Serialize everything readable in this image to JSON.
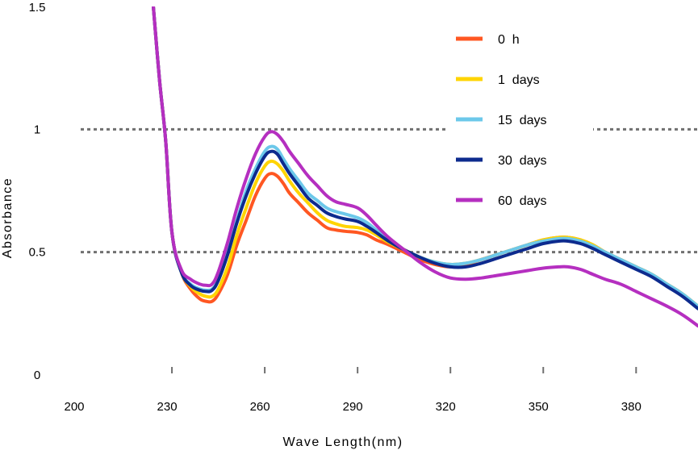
{
  "chart_data": {
    "type": "line",
    "title": "",
    "xlabel": "Wave Length(nm)",
    "ylabel": "Absorbance",
    "xlim": [
      200,
      400
    ],
    "ylim": [
      0,
      1.5
    ],
    "x_ticks": [
      "200",
      "230",
      "260",
      "290",
      "320",
      "350",
      "380"
    ],
    "y_ticks": [
      "0",
      "0.5",
      "1",
      "1.5"
    ],
    "reference_lines": [
      0.5,
      1
    ],
    "legend_position": "top-right",
    "series": [
      {
        "name": "0  h",
        "color": "#ff5722",
        "x": [
          224,
          226,
          228,
          230,
          233,
          236,
          239,
          241,
          243,
          245,
          248,
          251,
          254,
          257,
          260,
          262,
          264,
          266,
          268,
          271,
          274,
          277,
          280,
          283,
          286,
          290,
          293,
          296,
          300,
          305,
          310,
          315,
          320,
          325,
          330,
          335,
          340,
          345,
          350,
          355,
          358,
          362,
          366,
          370,
          375,
          380,
          385,
          390,
          395,
          400
        ],
        "y": [
          1.5,
          1.2,
          0.95,
          0.58,
          0.42,
          0.35,
          0.31,
          0.3,
          0.3,
          0.33,
          0.41,
          0.53,
          0.63,
          0.73,
          0.8,
          0.82,
          0.81,
          0.78,
          0.74,
          0.7,
          0.66,
          0.63,
          0.6,
          0.59,
          0.585,
          0.58,
          0.57,
          0.55,
          0.53,
          0.5,
          0.47,
          0.45,
          0.44,
          0.45,
          0.47,
          0.49,
          0.51,
          0.53,
          0.55,
          0.56,
          0.56,
          0.55,
          0.53,
          0.5,
          0.47,
          0.44,
          0.41,
          0.37,
          0.33,
          0.28
        ]
      },
      {
        "name": "1  days",
        "color": "#ffd400",
        "x": [
          224,
          226,
          228,
          230,
          233,
          236,
          239,
          241,
          243,
          245,
          248,
          251,
          254,
          257,
          260,
          262,
          264,
          266,
          268,
          271,
          274,
          277,
          280,
          283,
          286,
          290,
          293,
          296,
          300,
          305,
          310,
          315,
          320,
          325,
          330,
          335,
          340,
          345,
          350,
          355,
          358,
          362,
          366,
          370,
          375,
          380,
          385,
          390,
          395,
          400
        ],
        "y": [
          1.5,
          1.2,
          0.95,
          0.58,
          0.42,
          0.36,
          0.33,
          0.32,
          0.32,
          0.35,
          0.44,
          0.57,
          0.68,
          0.78,
          0.85,
          0.87,
          0.86,
          0.83,
          0.79,
          0.74,
          0.7,
          0.66,
          0.63,
          0.615,
          0.605,
          0.6,
          0.59,
          0.57,
          0.54,
          0.51,
          0.48,
          0.46,
          0.45,
          0.455,
          0.47,
          0.49,
          0.51,
          0.53,
          0.55,
          0.56,
          0.56,
          0.55,
          0.53,
          0.5,
          0.47,
          0.44,
          0.41,
          0.37,
          0.33,
          0.28
        ]
      },
      {
        "name": "15  days",
        "color": "#6cc8ea",
        "x": [
          224,
          226,
          228,
          230,
          233,
          236,
          239,
          241,
          243,
          245,
          248,
          251,
          254,
          257,
          260,
          262,
          264,
          266,
          268,
          271,
          274,
          277,
          280,
          283,
          286,
          290,
          293,
          296,
          300,
          305,
          310,
          315,
          320,
          325,
          330,
          335,
          340,
          345,
          350,
          355,
          358,
          362,
          366,
          370,
          375,
          380,
          385,
          390,
          395,
          400
        ],
        "y": [
          1.5,
          1.2,
          0.95,
          0.58,
          0.42,
          0.37,
          0.35,
          0.345,
          0.35,
          0.39,
          0.5,
          0.63,
          0.75,
          0.84,
          0.91,
          0.93,
          0.92,
          0.88,
          0.84,
          0.79,
          0.74,
          0.71,
          0.68,
          0.665,
          0.655,
          0.64,
          0.62,
          0.59,
          0.55,
          0.51,
          0.48,
          0.46,
          0.45,
          0.455,
          0.47,
          0.49,
          0.51,
          0.53,
          0.545,
          0.555,
          0.555,
          0.545,
          0.525,
          0.5,
          0.47,
          0.44,
          0.41,
          0.37,
          0.33,
          0.28
        ]
      },
      {
        "name": "30  days",
        "color": "#0d2b8e",
        "x": [
          224,
          226,
          228,
          230,
          233,
          236,
          239,
          241,
          243,
          245,
          248,
          251,
          254,
          257,
          260,
          262,
          264,
          266,
          268,
          271,
          274,
          277,
          280,
          283,
          286,
          290,
          293,
          296,
          300,
          305,
          310,
          315,
          320,
          325,
          330,
          335,
          340,
          345,
          350,
          355,
          358,
          362,
          366,
          370,
          375,
          380,
          385,
          390,
          395,
          400
        ],
        "y": [
          1.5,
          1.2,
          0.95,
          0.58,
          0.42,
          0.365,
          0.345,
          0.34,
          0.345,
          0.385,
          0.49,
          0.62,
          0.73,
          0.82,
          0.89,
          0.91,
          0.9,
          0.86,
          0.82,
          0.77,
          0.72,
          0.69,
          0.66,
          0.645,
          0.635,
          0.625,
          0.605,
          0.58,
          0.545,
          0.51,
          0.48,
          0.455,
          0.44,
          0.44,
          0.455,
          0.475,
          0.495,
          0.515,
          0.535,
          0.545,
          0.545,
          0.535,
          0.515,
          0.49,
          0.46,
          0.43,
          0.4,
          0.36,
          0.32,
          0.27
        ]
      },
      {
        "name": "60  days",
        "color": "#b52fc0",
        "x": [
          224,
          226,
          228,
          230,
          233,
          236,
          239,
          241,
          243,
          245,
          248,
          251,
          254,
          257,
          260,
          262,
          264,
          266,
          268,
          271,
          274,
          277,
          280,
          283,
          286,
          290,
          293,
          296,
          300,
          305,
          310,
          315,
          320,
          325,
          330,
          335,
          340,
          345,
          350,
          355,
          358,
          362,
          366,
          370,
          375,
          380,
          385,
          390,
          395,
          400
        ],
        "y": [
          1.5,
          1.2,
          0.95,
          0.58,
          0.43,
          0.39,
          0.37,
          0.365,
          0.37,
          0.42,
          0.54,
          0.68,
          0.8,
          0.9,
          0.97,
          0.99,
          0.98,
          0.95,
          0.91,
          0.86,
          0.81,
          0.77,
          0.73,
          0.705,
          0.695,
          0.68,
          0.65,
          0.61,
          0.56,
          0.51,
          0.46,
          0.42,
          0.395,
          0.39,
          0.395,
          0.405,
          0.415,
          0.425,
          0.435,
          0.44,
          0.44,
          0.43,
          0.41,
          0.39,
          0.37,
          0.34,
          0.31,
          0.28,
          0.245,
          0.2
        ]
      }
    ]
  }
}
